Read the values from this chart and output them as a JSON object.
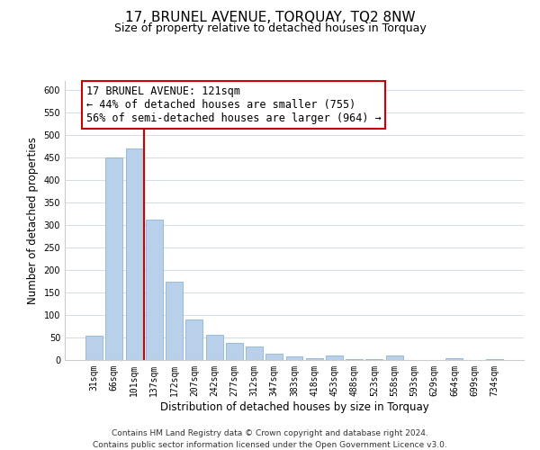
{
  "title": "17, BRUNEL AVENUE, TORQUAY, TQ2 8NW",
  "subtitle": "Size of property relative to detached houses in Torquay",
  "xlabel": "Distribution of detached houses by size in Torquay",
  "ylabel": "Number of detached properties",
  "categories": [
    "31sqm",
    "66sqm",
    "101sqm",
    "137sqm",
    "172sqm",
    "207sqm",
    "242sqm",
    "277sqm",
    "312sqm",
    "347sqm",
    "383sqm",
    "418sqm",
    "453sqm",
    "488sqm",
    "523sqm",
    "558sqm",
    "593sqm",
    "629sqm",
    "664sqm",
    "699sqm",
    "734sqm"
  ],
  "values": [
    55,
    450,
    470,
    312,
    175,
    90,
    57,
    38,
    30,
    15,
    8,
    5,
    10,
    3,
    3,
    10,
    1,
    0,
    4,
    0,
    2
  ],
  "bar_color": "#b8d0ea",
  "bar_edge_color": "#8ab4d8",
  "vline_x": 2.5,
  "vline_color": "#cc0000",
  "ylim": [
    0,
    620
  ],
  "yticks": [
    0,
    50,
    100,
    150,
    200,
    250,
    300,
    350,
    400,
    450,
    500,
    550,
    600
  ],
  "annotation_title": "17 BRUNEL AVENUE: 121sqm",
  "annotation_line1": "← 44% of detached houses are smaller (755)",
  "annotation_line2": "56% of semi-detached houses are larger (964) →",
  "annotation_box_color": "#ffffff",
  "annotation_box_edge": "#cc0000",
  "footer_line1": "Contains HM Land Registry data © Crown copyright and database right 2024.",
  "footer_line2": "Contains public sector information licensed under the Open Government Licence v3.0.",
  "bg_color": "#ffffff",
  "grid_color": "#d0dce8",
  "title_fontsize": 11,
  "subtitle_fontsize": 9,
  "axis_label_fontsize": 8.5,
  "tick_fontsize": 7,
  "footer_fontsize": 6.5,
  "annotation_fontsize": 8.5
}
